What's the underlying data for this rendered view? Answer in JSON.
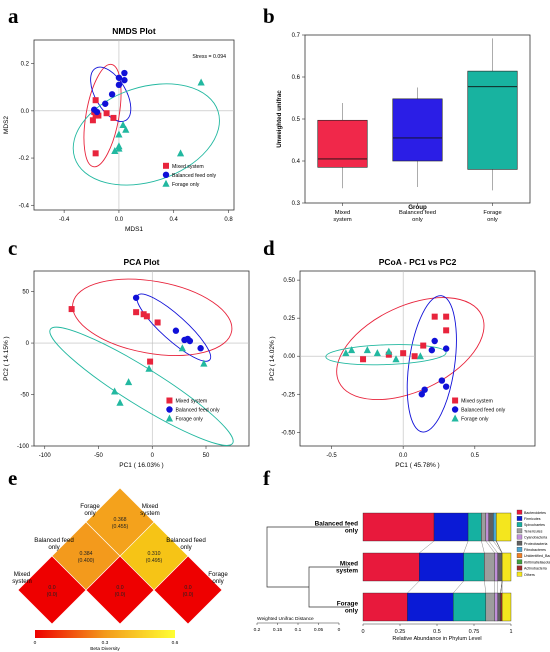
{
  "panels": {
    "a": {
      "letter": "a",
      "title": "NMDS Plot",
      "xlabel": "MDS1",
      "ylabel": "MDS2",
      "stress": "Stress = 0.094"
    },
    "b": {
      "letter": "b",
      "ylabel": "Unweighted unifrac",
      "xlabel": "Group"
    },
    "c": {
      "letter": "c",
      "title": "PCA Plot",
      "xlabel": "PC1 ( 16.03% )",
      "ylabel": "PC2 ( 14.15% )"
    },
    "d": {
      "letter": "d",
      "title": "PCoA - PC1 vs PC2",
      "xlabel": "PC1 ( 45.78% )",
      "ylabel": "PC2 ( 14.02% )"
    },
    "e": {
      "letter": "e",
      "legend_title": "Beta Diversity"
    },
    "f": {
      "letter": "f",
      "xlabel": "Relative Abundance in Phylum Level",
      "dendro_label": "Weighted Unifrac Distance"
    }
  },
  "colors": {
    "mixed": "#e8243c",
    "balanced": "#1010d8",
    "forage": "#22b8a0",
    "box_mixed": "#f0284a",
    "box_balanced": "#2b1ee6",
    "box_forage": "#18b3a0"
  },
  "chart_data": [
    {
      "id": "a",
      "type": "scatter",
      "title": "NMDS Plot",
      "xlabel": "MDS1",
      "ylabel": "MDS2",
      "xlim": [
        -0.62,
        0.84
      ],
      "ylim": [
        -0.42,
        0.3
      ],
      "xticks": [
        "-0.4",
        "0.0",
        "0.4",
        "0.8"
      ],
      "xtick_vals": [
        -0.4,
        0,
        0.4,
        0.8
      ],
      "yticks": [
        "-0.4",
        "-0.2",
        "0.0",
        "0.2"
      ],
      "ytick_vals": [
        -0.4,
        -0.2,
        0,
        0.2
      ],
      "annotation": "Stress = 0.094",
      "legend": [
        "Mixed system",
        "Balanced feed only",
        "Forage only"
      ],
      "series": [
        {
          "name": "Mixed system",
          "x": [
            -0.17,
            -0.18,
            -0.17,
            -0.15,
            -0.19,
            -0.09,
            -0.04,
            -0.17
          ],
          "y": [
            0.045,
            -0.005,
            -0.02,
            -0.02,
            -0.04,
            -0.01,
            -0.03,
            -0.18
          ]
        },
        {
          "name": "Balanced feed only",
          "x": [
            -0.18,
            -0.16,
            -0.1,
            -0.05,
            0.0,
            0.0,
            0.04,
            0.04
          ],
          "y": [
            0.005,
            -0.005,
            0.03,
            0.07,
            0.11,
            0.14,
            0.13,
            0.16
          ]
        },
        {
          "name": "Forage only",
          "x": [
            0.03,
            0.0,
            0.05,
            0.0,
            -0.03,
            0.0,
            0.45,
            0.6
          ],
          "y": [
            -0.06,
            -0.1,
            -0.08,
            -0.16,
            -0.17,
            -0.15,
            -0.18,
            0.12
          ]
        }
      ],
      "ellipses": [
        {
          "cx": -0.12,
          "cy": -0.02,
          "rx": 0.12,
          "ry": 0.22,
          "rot": -10
        },
        {
          "cx": -0.06,
          "cy": 0.07,
          "rx": 0.22,
          "ry": 0.065,
          "rot": -60
        },
        {
          "cx": 0.2,
          "cy": -0.1,
          "rx": 0.55,
          "ry": 0.2,
          "rot": 18
        }
      ]
    },
    {
      "id": "b",
      "type": "box",
      "ylabel": "Unweighted unifrac",
      "xlabel": "Group",
      "ylim": [
        0.3,
        0.7
      ],
      "yticks": [
        "0.3",
        "0.4",
        "0.5",
        "0.6",
        "0.7"
      ],
      "ytick_vals": [
        0.3,
        0.4,
        0.5,
        0.6,
        0.7
      ],
      "categories": [
        "Mixed system",
        "Balanced feed only",
        "Forage only"
      ],
      "boxes": [
        {
          "min": 0.335,
          "q1": 0.385,
          "median": 0.405,
          "q3": 0.497,
          "max": 0.538
        },
        {
          "min": 0.338,
          "q1": 0.4,
          "median": 0.455,
          "q3": 0.548,
          "max": 0.575
        },
        {
          "min": 0.33,
          "q1": 0.38,
          "median": 0.577,
          "q3": 0.614,
          "max": 0.692
        }
      ]
    },
    {
      "id": "c",
      "type": "scatter",
      "title": "PCA Plot",
      "xlabel": "PC1 ( 16.03% )",
      "ylabel": "PC2 ( 14.15% )",
      "xlim": [
        -110,
        90
      ],
      "ylim": [
        -100,
        70
      ],
      "xticks": [
        "-100",
        "-50",
        "0",
        "50"
      ],
      "xtick_vals": [
        -100,
        -50,
        0,
        50
      ],
      "yticks": [
        "-100",
        "-50",
        "0",
        "50"
      ],
      "ytick_vals": [
        -100,
        -50,
        0,
        50
      ],
      "legend": [
        "Mixed system",
        "Balanced feed only",
        "Forage only"
      ],
      "series": [
        {
          "name": "Mixed system",
          "x": [
            -75,
            -15,
            -8,
            -5,
            5,
            -2
          ],
          "y": [
            33,
            30,
            28,
            26,
            20,
            -18
          ]
        },
        {
          "name": "Balanced feed only",
          "x": [
            -15,
            22,
            30,
            33,
            35,
            45
          ],
          "y": [
            44,
            12,
            3,
            4,
            2,
            -5
          ]
        },
        {
          "name": "Forage only",
          "x": [
            -35,
            -30,
            -22,
            -3,
            28,
            48
          ],
          "y": [
            -47,
            -58,
            -38,
            -25,
            -5,
            -20
          ]
        }
      ],
      "ellipses": [
        {
          "cx": 0,
          "cy": 25,
          "rx": 75,
          "ry": 35,
          "rot": -10
        },
        {
          "cx": 20,
          "cy": 15,
          "rx": 45,
          "ry": 12,
          "rot": -42
        },
        {
          "cx": -10,
          "cy": -42,
          "rx": 100,
          "ry": 18,
          "rot": -32
        }
      ]
    },
    {
      "id": "d",
      "type": "scatter",
      "title": "PCoA - PC1 vs PC2",
      "xlabel": "PC1 ( 45.78% )",
      "ylabel": "PC2 ( 14.02% )",
      "xlim": [
        -0.72,
        0.92
      ],
      "ylim": [
        -0.59,
        0.56
      ],
      "xticks": [
        "-0.5",
        "0.0",
        "0.5"
      ],
      "xtick_vals": [
        -0.5,
        0,
        0.5
      ],
      "yticks": [
        "-0.50",
        "-0.25",
        "0.00",
        "0.25",
        "0.50"
      ],
      "ytick_vals": [
        -0.5,
        -0.25,
        0,
        0.25,
        0.5
      ],
      "legend": [
        "Mixed system",
        "Balanced feed only",
        "Forage only"
      ],
      "series": [
        {
          "name": "Mixed system",
          "x": [
            0.22,
            0.3,
            0.3,
            0.14,
            -0.28,
            -0.1,
            0.0,
            0.08
          ],
          "y": [
            0.26,
            0.26,
            0.17,
            0.07,
            -0.02,
            0.01,
            0.02,
            0.0
          ]
        },
        {
          "name": "Balanced feed only",
          "x": [
            0.22,
            0.2,
            0.3,
            0.27,
            0.15,
            0.13,
            0.3
          ],
          "y": [
            0.1,
            0.04,
            0.05,
            -0.16,
            -0.22,
            -0.25,
            -0.2
          ]
        },
        {
          "name": "Forage only",
          "x": [
            -0.4,
            -0.36,
            -0.25,
            -0.18,
            -0.1,
            -0.05,
            0.12
          ],
          "y": [
            0.02,
            0.04,
            0.04,
            0.02,
            0.03,
            -0.02,
            0.0
          ]
        }
      ],
      "ellipses": [
        {
          "cx": 0.05,
          "cy": 0.05,
          "rx": 0.55,
          "ry": 0.28,
          "rot": 25
        },
        {
          "cx": 0.2,
          "cy": -0.05,
          "rx": 0.48,
          "ry": 0.15,
          "rot": 82
        },
        {
          "cx": -0.12,
          "cy": 0.01,
          "rx": 0.42,
          "ry": 0.065,
          "rot": 2
        }
      ]
    },
    {
      "id": "e",
      "type": "heatmap",
      "labels": [
        "Mixed system",
        "Balanced feed only",
        "Forage only"
      ],
      "cells": [
        {
          "pair": "Mixed system vs Mixed system",
          "value": "0.0",
          "sub": "(0.0)",
          "color": "#ee0000"
        },
        {
          "pair": "Balanced feed only vs Balanced feed only",
          "value": "0.0",
          "sub": "(0.0)",
          "color": "#ee0000"
        },
        {
          "pair": "Forage only vs Forage only",
          "value": "0.0",
          "sub": "(0.0)",
          "color": "#ee0000"
        },
        {
          "pair": "Mixed system vs Balanced feed only",
          "value": "0.384",
          "sub": "(0.400)",
          "color": "#f39a1c"
        },
        {
          "pair": "Balanced feed only vs Forage only",
          "value": "0.310",
          "sub": "(0.495)",
          "color": "#f6c416"
        },
        {
          "pair": "Mixed system vs Forage only",
          "value": "0.368",
          "sub": "(0.455)",
          "color": "#f4a21c"
        }
      ],
      "colorbar": {
        "title": "Beta Diversity",
        "ticks": [
          "0",
          "0.3",
          "0.6"
        ],
        "colors": [
          "#ee0000",
          "#f39a1c",
          "#ffff33"
        ]
      }
    },
    {
      "id": "f",
      "type": "bar",
      "orientation": "horizontal",
      "stacked": true,
      "xlabel": "Relative Abundance in Phylum Level",
      "xticks": [
        "0",
        "0.25",
        "0.5",
        "0.75",
        "1"
      ],
      "dendro_label": "Weighted Unifrac Distance",
      "dendro_ticks": [
        "0.2",
        "0.15",
        "0.1",
        "0.05",
        "0"
      ],
      "categories": [
        "Balanced feed only",
        "Mixed system",
        "Forage only"
      ],
      "phyla": [
        "Bacteroidetes",
        "Firmicutes",
        "Spirochaetes",
        "Tenericutes",
        "Cyanobacteria",
        "Proteobacteria",
        "Fibrobacteres",
        "Unidentified_Bacteria",
        "Kiritimatiellaeota",
        "Actinobacteria",
        "Others"
      ],
      "phyla_colors": [
        "#e8193c",
        "#0a1ad6",
        "#15b1a1",
        "#9d9d9d",
        "#c090d8",
        "#606060",
        "#4aa6d0",
        "#f07f26",
        "#3f9f3f",
        "#9c2a2a",
        "#f4e61e"
      ],
      "values": [
        [
          0.48,
          0.23,
          0.09,
          0.03,
          0.02,
          0.03,
          0.02,
          0.0,
          0.0,
          0.0,
          0.1
        ],
        [
          0.38,
          0.3,
          0.14,
          0.07,
          0.02,
          0.03,
          0.0,
          0.0,
          0.0,
          0.0,
          0.06
        ],
        [
          0.3,
          0.31,
          0.22,
          0.06,
          0.02,
          0.02,
          0.0,
          0.0,
          0.0,
          0.01,
          0.06
        ]
      ]
    }
  ]
}
